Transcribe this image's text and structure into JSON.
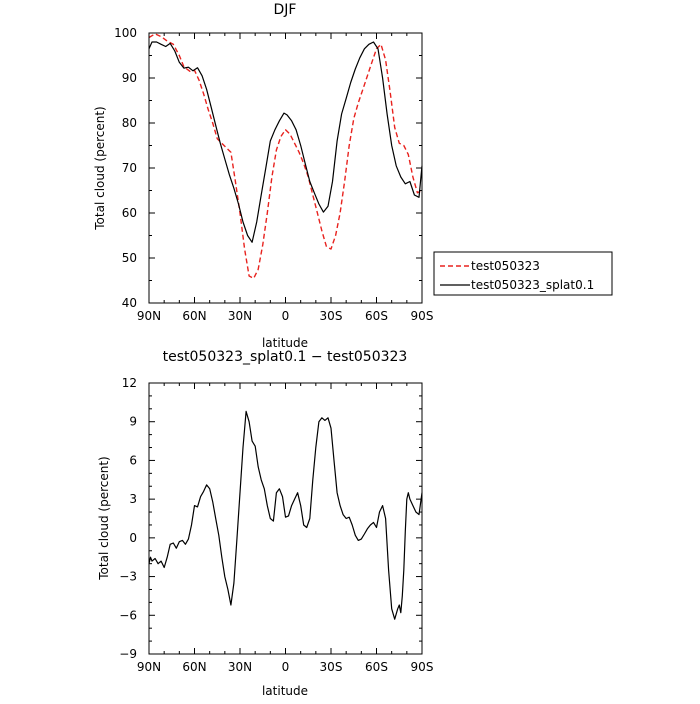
{
  "chart_data": [
    {
      "type": "line",
      "title": "DJF",
      "xlabel": "latitude",
      "ylabel": "Total cloud (percent)",
      "xlim": [
        -90,
        90
      ],
      "ylim": [
        40,
        100
      ],
      "x_ticks": [
        -90,
        -60,
        -30,
        0,
        30,
        60,
        90
      ],
      "x_tick_labels": [
        "90N",
        "60N",
        "30N",
        "0",
        "30S",
        "60S",
        "90S"
      ],
      "y_ticks": [
        40,
        50,
        60,
        70,
        80,
        90,
        100
      ],
      "y_tick_labels": [
        "40",
        "50",
        "60",
        "70",
        "80",
        "90",
        "100"
      ],
      "legend_position": "right",
      "series": [
        {
          "name": "test050323",
          "color": "#e8221e",
          "dash": true,
          "x": [
            -90,
            -86,
            -82,
            -78,
            -74,
            -70,
            -67,
            -63,
            -60,
            -57,
            -54,
            -51,
            -48,
            -45,
            -42,
            -39,
            -36,
            -33,
            -30,
            -27,
            -24,
            -21,
            -18,
            -15,
            -12,
            -9,
            -6,
            -3,
            0,
            3,
            6,
            9,
            12,
            15,
            18,
            21,
            24,
            27,
            30,
            33,
            36,
            39,
            42,
            45,
            48,
            51,
            54,
            57,
            60,
            63,
            66,
            69,
            72,
            75,
            78,
            81,
            84,
            87,
            90
          ],
          "y": [
            99,
            99.8,
            99.2,
            98.2,
            97.5,
            95,
            92.5,
            91.5,
            91.7,
            89.5,
            86.5,
            83,
            80,
            76.5,
            75.5,
            74.5,
            73.5,
            67,
            60,
            52,
            46,
            45.5,
            47.5,
            53,
            60,
            68,
            74,
            77,
            78.5,
            77.5,
            75.5,
            73.5,
            71,
            68,
            64,
            60,
            56,
            52.5,
            52,
            55,
            60,
            67,
            75,
            81,
            84.5,
            87.5,
            90.5,
            93.5,
            96.5,
            97.5,
            94,
            87,
            79,
            75.5,
            75,
            73,
            68,
            64.5,
            65
          ]
        },
        {
          "name": "test050323_splat0.1",
          "color": "#000000",
          "dash": false,
          "x": [
            -90,
            -88,
            -85,
            -82,
            -79,
            -76,
            -73,
            -70,
            -67,
            -64,
            -61,
            -58,
            -55,
            -52,
            -49,
            -46,
            -43,
            -40,
            -37,
            -34,
            -31,
            -28,
            -25,
            -22,
            -19,
            -16,
            -13,
            -10,
            -7,
            -4,
            -1,
            1,
            4,
            7,
            10,
            13,
            16,
            19,
            22,
            25,
            28,
            31,
            34,
            37,
            40,
            43,
            46,
            49,
            52,
            55,
            58,
            61,
            64,
            67,
            70,
            73,
            76,
            79,
            82,
            85,
            88,
            90
          ],
          "y": [
            96.5,
            98,
            98,
            97.5,
            97,
            97.7,
            96,
            93.5,
            92.2,
            92.4,
            91.6,
            92.3,
            90.5,
            87.5,
            83.5,
            79.5,
            75.5,
            72,
            68.5,
            65.5,
            62,
            58,
            55,
            53.5,
            58,
            64,
            70,
            76,
            78.5,
            80.5,
            82.2,
            81.8,
            80.5,
            78.5,
            75,
            71,
            67,
            64.5,
            62,
            60.2,
            61.5,
            67,
            76,
            82,
            85.5,
            89,
            92,
            94.5,
            96.5,
            97.5,
            98,
            96.5,
            90,
            82,
            75,
            70.5,
            68,
            66.5,
            67,
            64,
            63.5,
            70.5
          ]
        }
      ]
    },
    {
      "type": "line",
      "title": "test050323_splat0.1 − test050323",
      "xlabel": "latitude",
      "ylabel": "Total cloud (percent)",
      "xlim": [
        -90,
        90
      ],
      "ylim": [
        -9,
        12
      ],
      "x_ticks": [
        -90,
        -60,
        -30,
        0,
        30,
        60,
        90
      ],
      "x_tick_labels": [
        "90N",
        "60N",
        "30N",
        "0",
        "30S",
        "60S",
        "90S"
      ],
      "y_ticks": [
        -9,
        -6,
        -3,
        0,
        3,
        6,
        9,
        12
      ],
      "y_tick_labels": [
        "−9",
        "−6",
        "−3",
        "0",
        "3",
        "6",
        "9",
        "12"
      ],
      "series": [
        {
          "color": "#000000",
          "dash": false,
          "x": [
            -90,
            -89,
            -88,
            -86,
            -84,
            -82,
            -80,
            -78,
            -76,
            -74,
            -72,
            -70,
            -68,
            -66,
            -64,
            -62,
            -60,
            -58,
            -56,
            -54,
            -52,
            -50,
            -48,
            -46,
            -44,
            -42,
            -40,
            -38,
            -36,
            -34,
            -32,
            -30,
            -28,
            -26,
            -24,
            -22,
            -20,
            -18,
            -16,
            -14,
            -12,
            -10,
            -8,
            -6,
            -4,
            -2,
            0,
            2,
            4,
            6,
            8,
            10,
            12,
            14,
            16,
            18,
            20,
            22,
            24,
            26,
            28,
            30,
            32,
            34,
            36,
            38,
            40,
            42,
            44,
            46,
            48,
            50,
            52,
            54,
            56,
            58,
            60,
            62,
            64,
            66,
            68,
            70,
            72,
            74,
            75,
            76,
            77,
            78,
            79,
            80,
            81,
            82,
            84,
            86,
            88,
            90
          ],
          "y": [
            -2,
            -1.5,
            -1.8,
            -1.6,
            -2,
            -1.8,
            -2.3,
            -1.5,
            -0.5,
            -0.4,
            -0.8,
            -0.3,
            -0.2,
            -0.5,
            -0.1,
            1,
            2.5,
            2.4,
            3.2,
            3.6,
            4.1,
            3.8,
            2.8,
            1.5,
            0.2,
            -1.5,
            -3,
            -4,
            -5.2,
            -3.5,
            0,
            3.5,
            7,
            9.8,
            9,
            7.5,
            7.1,
            5.5,
            4.5,
            3.8,
            2.5,
            1.5,
            1.3,
            3.5,
            3.8,
            3.2,
            1.6,
            1.7,
            2.5,
            3,
            3.5,
            2.5,
            1,
            0.8,
            1.5,
            4.5,
            7,
            9,
            9.3,
            9.1,
            9.3,
            8.5,
            6,
            3.5,
            2.5,
            1.8,
            1.5,
            1.6,
            1,
            0.2,
            -0.2,
            -0.1,
            0.3,
            0.7,
            1,
            1.2,
            0.8,
            2,
            2.5,
            1.5,
            -2.5,
            -5.5,
            -6.3,
            -5.5,
            -5.2,
            -5.8,
            -4.5,
            -2.5,
            0.5,
            3,
            3.5,
            3,
            2.5,
            2,
            1.8,
            3.5
          ]
        }
      ]
    }
  ]
}
